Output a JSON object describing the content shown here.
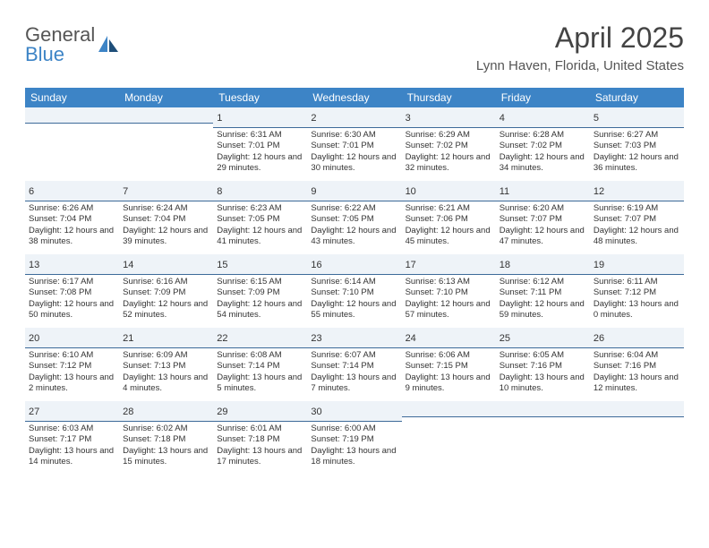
{
  "logo": {
    "line1": "General",
    "line2": "Blue"
  },
  "title": "April 2025",
  "location": "Lynn Haven, Florida, United States",
  "colors": {
    "header_bg": "#3d84c6",
    "header_text": "#ffffff",
    "daynum_bg": "#eef3f8",
    "daynum_border": "#3d6a99",
    "text": "#333333",
    "logo_blue": "#3d84c6"
  },
  "day_headers": [
    "Sunday",
    "Monday",
    "Tuesday",
    "Wednesday",
    "Thursday",
    "Friday",
    "Saturday"
  ],
  "weeks": [
    [
      {
        "num": "",
        "sunrise": "",
        "sunset": "",
        "daylight": ""
      },
      {
        "num": "",
        "sunrise": "",
        "sunset": "",
        "daylight": ""
      },
      {
        "num": "1",
        "sunrise": "Sunrise: 6:31 AM",
        "sunset": "Sunset: 7:01 PM",
        "daylight": "Daylight: 12 hours and 29 minutes."
      },
      {
        "num": "2",
        "sunrise": "Sunrise: 6:30 AM",
        "sunset": "Sunset: 7:01 PM",
        "daylight": "Daylight: 12 hours and 30 minutes."
      },
      {
        "num": "3",
        "sunrise": "Sunrise: 6:29 AM",
        "sunset": "Sunset: 7:02 PM",
        "daylight": "Daylight: 12 hours and 32 minutes."
      },
      {
        "num": "4",
        "sunrise": "Sunrise: 6:28 AM",
        "sunset": "Sunset: 7:02 PM",
        "daylight": "Daylight: 12 hours and 34 minutes."
      },
      {
        "num": "5",
        "sunrise": "Sunrise: 6:27 AM",
        "sunset": "Sunset: 7:03 PM",
        "daylight": "Daylight: 12 hours and 36 minutes."
      }
    ],
    [
      {
        "num": "6",
        "sunrise": "Sunrise: 6:26 AM",
        "sunset": "Sunset: 7:04 PM",
        "daylight": "Daylight: 12 hours and 38 minutes."
      },
      {
        "num": "7",
        "sunrise": "Sunrise: 6:24 AM",
        "sunset": "Sunset: 7:04 PM",
        "daylight": "Daylight: 12 hours and 39 minutes."
      },
      {
        "num": "8",
        "sunrise": "Sunrise: 6:23 AM",
        "sunset": "Sunset: 7:05 PM",
        "daylight": "Daylight: 12 hours and 41 minutes."
      },
      {
        "num": "9",
        "sunrise": "Sunrise: 6:22 AM",
        "sunset": "Sunset: 7:05 PM",
        "daylight": "Daylight: 12 hours and 43 minutes."
      },
      {
        "num": "10",
        "sunrise": "Sunrise: 6:21 AM",
        "sunset": "Sunset: 7:06 PM",
        "daylight": "Daylight: 12 hours and 45 minutes."
      },
      {
        "num": "11",
        "sunrise": "Sunrise: 6:20 AM",
        "sunset": "Sunset: 7:07 PM",
        "daylight": "Daylight: 12 hours and 47 minutes."
      },
      {
        "num": "12",
        "sunrise": "Sunrise: 6:19 AM",
        "sunset": "Sunset: 7:07 PM",
        "daylight": "Daylight: 12 hours and 48 minutes."
      }
    ],
    [
      {
        "num": "13",
        "sunrise": "Sunrise: 6:17 AM",
        "sunset": "Sunset: 7:08 PM",
        "daylight": "Daylight: 12 hours and 50 minutes."
      },
      {
        "num": "14",
        "sunrise": "Sunrise: 6:16 AM",
        "sunset": "Sunset: 7:09 PM",
        "daylight": "Daylight: 12 hours and 52 minutes."
      },
      {
        "num": "15",
        "sunrise": "Sunrise: 6:15 AM",
        "sunset": "Sunset: 7:09 PM",
        "daylight": "Daylight: 12 hours and 54 minutes."
      },
      {
        "num": "16",
        "sunrise": "Sunrise: 6:14 AM",
        "sunset": "Sunset: 7:10 PM",
        "daylight": "Daylight: 12 hours and 55 minutes."
      },
      {
        "num": "17",
        "sunrise": "Sunrise: 6:13 AM",
        "sunset": "Sunset: 7:10 PM",
        "daylight": "Daylight: 12 hours and 57 minutes."
      },
      {
        "num": "18",
        "sunrise": "Sunrise: 6:12 AM",
        "sunset": "Sunset: 7:11 PM",
        "daylight": "Daylight: 12 hours and 59 minutes."
      },
      {
        "num": "19",
        "sunrise": "Sunrise: 6:11 AM",
        "sunset": "Sunset: 7:12 PM",
        "daylight": "Daylight: 13 hours and 0 minutes."
      }
    ],
    [
      {
        "num": "20",
        "sunrise": "Sunrise: 6:10 AM",
        "sunset": "Sunset: 7:12 PM",
        "daylight": "Daylight: 13 hours and 2 minutes."
      },
      {
        "num": "21",
        "sunrise": "Sunrise: 6:09 AM",
        "sunset": "Sunset: 7:13 PM",
        "daylight": "Daylight: 13 hours and 4 minutes."
      },
      {
        "num": "22",
        "sunrise": "Sunrise: 6:08 AM",
        "sunset": "Sunset: 7:14 PM",
        "daylight": "Daylight: 13 hours and 5 minutes."
      },
      {
        "num": "23",
        "sunrise": "Sunrise: 6:07 AM",
        "sunset": "Sunset: 7:14 PM",
        "daylight": "Daylight: 13 hours and 7 minutes."
      },
      {
        "num": "24",
        "sunrise": "Sunrise: 6:06 AM",
        "sunset": "Sunset: 7:15 PM",
        "daylight": "Daylight: 13 hours and 9 minutes."
      },
      {
        "num": "25",
        "sunrise": "Sunrise: 6:05 AM",
        "sunset": "Sunset: 7:16 PM",
        "daylight": "Daylight: 13 hours and 10 minutes."
      },
      {
        "num": "26",
        "sunrise": "Sunrise: 6:04 AM",
        "sunset": "Sunset: 7:16 PM",
        "daylight": "Daylight: 13 hours and 12 minutes."
      }
    ],
    [
      {
        "num": "27",
        "sunrise": "Sunrise: 6:03 AM",
        "sunset": "Sunset: 7:17 PM",
        "daylight": "Daylight: 13 hours and 14 minutes."
      },
      {
        "num": "28",
        "sunrise": "Sunrise: 6:02 AM",
        "sunset": "Sunset: 7:18 PM",
        "daylight": "Daylight: 13 hours and 15 minutes."
      },
      {
        "num": "29",
        "sunrise": "Sunrise: 6:01 AM",
        "sunset": "Sunset: 7:18 PM",
        "daylight": "Daylight: 13 hours and 17 minutes."
      },
      {
        "num": "30",
        "sunrise": "Sunrise: 6:00 AM",
        "sunset": "Sunset: 7:19 PM",
        "daylight": "Daylight: 13 hours and 18 minutes."
      },
      {
        "num": "",
        "sunrise": "",
        "sunset": "",
        "daylight": ""
      },
      {
        "num": "",
        "sunrise": "",
        "sunset": "",
        "daylight": ""
      },
      {
        "num": "",
        "sunrise": "",
        "sunset": "",
        "daylight": ""
      }
    ]
  ]
}
